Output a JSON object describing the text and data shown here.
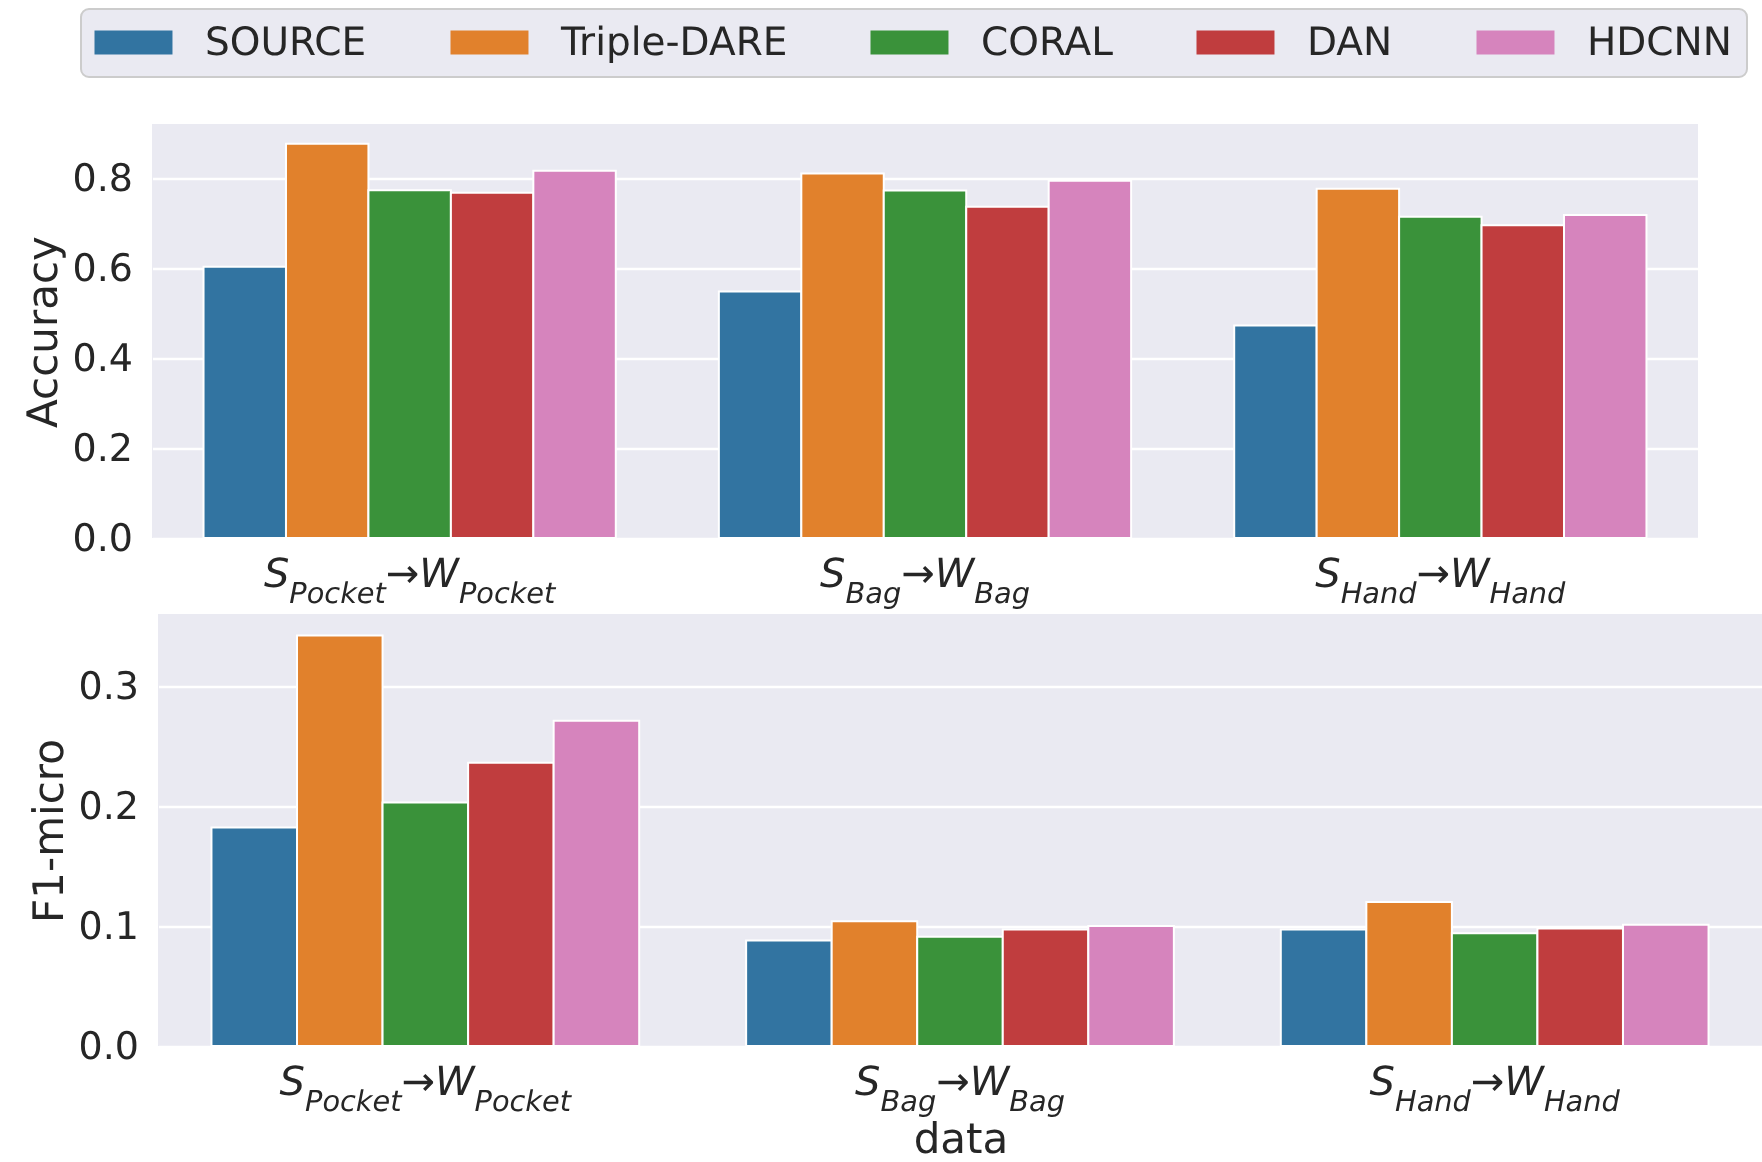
{
  "chart_data": [
    {
      "type": "bar",
      "ylabel": "Accuracy",
      "categories": [
        "S$_{Pocket}$→W$_{Pocket}$",
        "S$_{Bag}$→W$_{Bag}$",
        "S$_{Hand}$→W$_{Hand}$"
      ],
      "series": [
        {
          "name": "SOURCE",
          "color": "#3274a1",
          "values": [
            0.603,
            0.548,
            0.472
          ]
        },
        {
          "name": "Triple-DARE",
          "color": "#e1812c",
          "values": [
            0.876,
            0.81,
            0.776
          ]
        },
        {
          "name": "CORAL",
          "color": "#3a923a",
          "values": [
            0.773,
            0.772,
            0.714
          ]
        },
        {
          "name": "DAN",
          "color": "#c03d3e",
          "values": [
            0.767,
            0.736,
            0.695
          ]
        },
        {
          "name": "HDCNN",
          "color": "#d684bd",
          "values": [
            0.816,
            0.794,
            0.718
          ]
        }
      ],
      "ylim": [
        0,
        0.92
      ],
      "yticks": [
        {
          "value": 0,
          "label": "0.0"
        },
        0.2,
        0.4,
        0.6,
        0.8
      ],
      "grid": "y",
      "legend": "top"
    },
    {
      "type": "bar",
      "xlabel": "data",
      "ylabel": "F1-micro",
      "categories": [
        "S$_{Pocket}$→W$_{Pocket}$",
        "S$_{Bag}$→W$_{Bag}$",
        "S$_{Hand}$→W$_{Hand}$"
      ],
      "series": [
        {
          "color": "#3274a1",
          "values": [
            0.182,
            0.088,
            0.097
          ]
        },
        {
          "color": "#e1812c",
          "values": [
            0.342,
            0.104,
            0.12
          ]
        },
        {
          "color": "#3a923a",
          "values": [
            0.203,
            0.091,
            0.094
          ]
        },
        {
          "color": "#c03d3e",
          "values": [
            0.236,
            0.097,
            0.098
          ]
        },
        {
          "color": "#d684bd",
          "values": [
            0.271,
            0.1,
            0.101
          ]
        }
      ],
      "ylim": [
        0,
        0.36
      ],
      "yticks": [
        {
          "value": 0,
          "label": "0.0"
        },
        0.1,
        0.2,
        0.3
      ],
      "grid": "y"
    }
  ]
}
